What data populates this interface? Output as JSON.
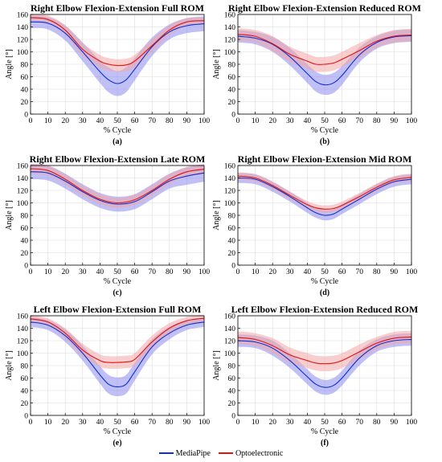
{
  "colors": {
    "mediapipe": "#0b2fd0",
    "optoelectronic": "#dd1414",
    "mediapipe_band": "#8c8cf0",
    "optoelectronic_band": "#f2a6a6"
  },
  "legend": {
    "mediapipe": "MediaPipe",
    "optoelectronic": "Optoelectronic"
  },
  "chart_data": [
    {
      "type": "line",
      "letter": "(a)",
      "title": "Right Elbow Flexion-Extension Full ROM",
      "xlabel": "% Cycle",
      "ylabel": "Angle [°]",
      "xlim": [
        0,
        100
      ],
      "ylim": [
        0,
        160
      ],
      "xticks": [
        0,
        10,
        20,
        30,
        40,
        50,
        60,
        70,
        80,
        90,
        100
      ],
      "yticks": [
        0,
        20,
        40,
        60,
        80,
        100,
        120,
        140,
        160
      ],
      "grid": true,
      "x": [
        0,
        10,
        20,
        30,
        40,
        45,
        50,
        55,
        60,
        70,
        80,
        90,
        100
      ],
      "series": [
        {
          "name": "MediaPipe",
          "values": [
            148,
            146,
            130,
            100,
            68,
            55,
            49,
            55,
            72,
            108,
            132,
            142,
            145
          ],
          "band": [
            10,
            10,
            12,
            15,
            18,
            20,
            20,
            20,
            18,
            15,
            12,
            12,
            12
          ]
        },
        {
          "name": "Optoelectronic",
          "values": [
            155,
            152,
            135,
            104,
            85,
            80,
            78,
            79,
            85,
            110,
            135,
            148,
            150
          ],
          "band": [
            5,
            6,
            8,
            10,
            10,
            10,
            10,
            10,
            10,
            10,
            8,
            6,
            5
          ]
        }
      ]
    },
    {
      "type": "line",
      "letter": "(b)",
      "title": "Right Elbow Flexion-Extension Reduced ROM",
      "xlabel": "% Cycle",
      "ylabel": "Angle [°]",
      "xlim": [
        0,
        100
      ],
      "ylim": [
        0,
        160
      ],
      "xticks": [
        0,
        10,
        20,
        30,
        40,
        50,
        60,
        70,
        80,
        90,
        100
      ],
      "yticks": [
        0,
        20,
        40,
        60,
        80,
        100,
        120,
        140,
        160
      ],
      "grid": true,
      "x": [
        0,
        10,
        20,
        30,
        40,
        45,
        50,
        55,
        60,
        70,
        80,
        90,
        100
      ],
      "series": [
        {
          "name": "MediaPipe",
          "values": [
            125,
            122,
            112,
            92,
            65,
            52,
            47,
            50,
            62,
            95,
            115,
            124,
            126
          ],
          "band": [
            10,
            10,
            12,
            14,
            15,
            16,
            16,
            16,
            15,
            12,
            10,
            10,
            10
          ]
        },
        {
          "name": "Optoelectronic",
          "values": [
            128,
            125,
            113,
            96,
            85,
            80,
            80,
            82,
            88,
            102,
            117,
            125,
            127
          ],
          "band": [
            10,
            10,
            12,
            12,
            12,
            12,
            12,
            12,
            12,
            12,
            10,
            10,
            10
          ]
        }
      ]
    },
    {
      "type": "line",
      "letter": "(c)",
      "title": "Right Elbow Flexion-Extension Late ROM",
      "xlabel": "% Cycle",
      "ylabel": "Angle [°]",
      "xlim": [
        0,
        100
      ],
      "ylim": [
        0,
        160
      ],
      "xticks": [
        0,
        10,
        20,
        30,
        40,
        50,
        60,
        70,
        80,
        90,
        100
      ],
      "yticks": [
        0,
        20,
        40,
        60,
        80,
        100,
        120,
        140,
        160
      ],
      "grid": true,
      "x": [
        0,
        10,
        20,
        30,
        40,
        50,
        60,
        70,
        80,
        90,
        100
      ],
      "series": [
        {
          "name": "MediaPipe",
          "values": [
            150,
            148,
            135,
            118,
            104,
            98,
            102,
            118,
            135,
            143,
            148
          ],
          "band": [
            12,
            12,
            12,
            12,
            12,
            12,
            12,
            12,
            12,
            14,
            14
          ]
        },
        {
          "name": "Optoelectronic",
          "values": [
            155,
            152,
            138,
            120,
            106,
            100,
            105,
            120,
            138,
            150,
            154
          ],
          "band": [
            8,
            8,
            8,
            8,
            8,
            8,
            8,
            8,
            8,
            8,
            8
          ]
        }
      ]
    },
    {
      "type": "line",
      "letter": "(d)",
      "title": "Right Elbow Flexion-Extension Mid ROM",
      "xlabel": "% Cycle",
      "ylabel": "Angle [°]",
      "xlim": [
        0,
        100
      ],
      "ylim": [
        0,
        160
      ],
      "xticks": [
        0,
        10,
        20,
        30,
        40,
        50,
        60,
        70,
        80,
        90,
        100
      ],
      "yticks": [
        0,
        20,
        40,
        60,
        80,
        100,
        120,
        140,
        160
      ],
      "grid": true,
      "x": [
        0,
        10,
        20,
        30,
        40,
        45,
        50,
        55,
        60,
        70,
        80,
        90,
        100
      ],
      "series": [
        {
          "name": "MediaPipe",
          "values": [
            140,
            138,
            126,
            110,
            92,
            84,
            80,
            82,
            90,
            106,
            122,
            134,
            138
          ],
          "band": [
            8,
            8,
            8,
            8,
            8,
            8,
            8,
            8,
            8,
            8,
            8,
            8,
            8
          ]
        },
        {
          "name": "Optoelectronic",
          "values": [
            143,
            140,
            128,
            112,
            97,
            92,
            90,
            91,
            96,
            110,
            125,
            137,
            141
          ],
          "band": [
            6,
            6,
            6,
            6,
            6,
            6,
            6,
            6,
            6,
            6,
            6,
            6,
            6
          ]
        }
      ]
    },
    {
      "type": "line",
      "letter": "(e)",
      "title": "Left Elbow Flexion-Extension Full ROM",
      "xlabel": "% Cycle",
      "ylabel": "Angle [°]",
      "xlim": [
        0,
        100
      ],
      "ylim": [
        0,
        160
      ],
      "xticks": [
        0,
        10,
        20,
        30,
        40,
        50,
        60,
        70,
        80,
        90,
        100
      ],
      "yticks": [
        0,
        20,
        40,
        60,
        80,
        100,
        120,
        140,
        160
      ],
      "grid": true,
      "x": [
        0,
        10,
        20,
        30,
        40,
        45,
        50,
        55,
        60,
        70,
        80,
        90,
        100
      ],
      "series": [
        {
          "name": "MediaPipe",
          "values": [
            150,
            145,
            128,
            100,
            65,
            50,
            46,
            50,
            70,
            110,
            132,
            145,
            150
          ],
          "band": [
            8,
            8,
            10,
            12,
            14,
            15,
            15,
            15,
            14,
            12,
            10,
            8,
            8
          ]
        },
        {
          "name": "Optoelectronic",
          "values": [
            155,
            150,
            132,
            105,
            88,
            85,
            85,
            86,
            90,
            118,
            140,
            152,
            156
          ],
          "band": [
            6,
            6,
            8,
            10,
            10,
            10,
            10,
            10,
            10,
            10,
            8,
            6,
            6
          ]
        }
      ]
    },
    {
      "type": "line",
      "letter": "(f)",
      "title": "Left Elbow Flexion-Extension Reduced ROM",
      "xlabel": "% Cycle",
      "ylabel": "Angle [°]",
      "xlim": [
        0,
        100
      ],
      "ylim": [
        0,
        160
      ],
      "xticks": [
        0,
        10,
        20,
        30,
        40,
        50,
        60,
        70,
        80,
        90,
        100
      ],
      "yticks": [
        0,
        20,
        40,
        60,
        80,
        100,
        120,
        140,
        160
      ],
      "grid": true,
      "x": [
        0,
        10,
        20,
        30,
        40,
        45,
        50,
        55,
        60,
        70,
        80,
        90,
        100
      ],
      "series": [
        {
          "name": "MediaPipe",
          "values": [
            120,
            118,
            108,
            88,
            62,
            50,
            45,
            48,
            60,
            92,
            112,
            120,
            122
          ],
          "band": [
            10,
            10,
            12,
            12,
            12,
            12,
            12,
            12,
            12,
            12,
            10,
            10,
            10
          ]
        },
        {
          "name": "Optoelectronic",
          "values": [
            125,
            122,
            112,
            97,
            88,
            84,
            83,
            84,
            88,
            102,
            116,
            124,
            126
          ],
          "band": [
            10,
            10,
            12,
            12,
            12,
            12,
            12,
            12,
            12,
            12,
            10,
            10,
            10
          ]
        }
      ]
    }
  ]
}
